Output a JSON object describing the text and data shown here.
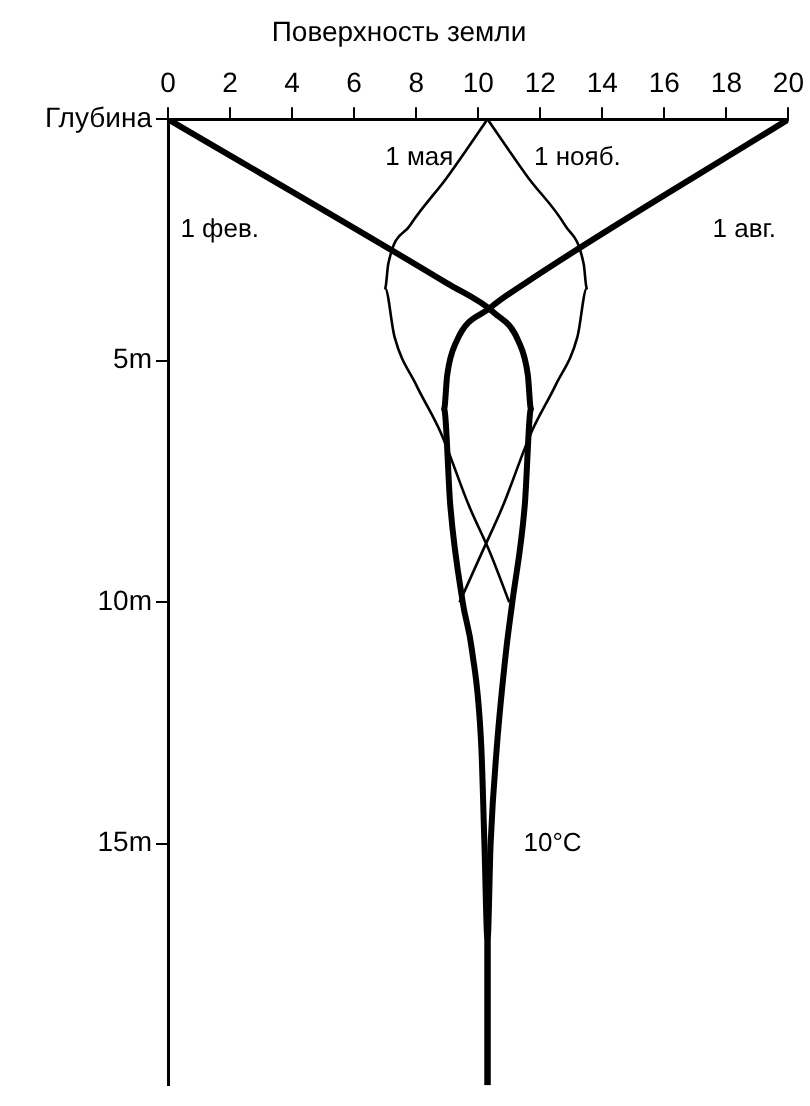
{
  "chart_data": {
    "type": "line",
    "title": "Поверхность земли",
    "xlim": [
      0,
      20
    ],
    "xticks": [
      0,
      2,
      4,
      6,
      8,
      10,
      12,
      14,
      16,
      18,
      20
    ],
    "ylim": [
      20,
      0
    ],
    "yticks": [
      {
        "value": 0,
        "label": "Глубина"
      },
      {
        "value": 5,
        "label": "5m"
      },
      {
        "value": 10,
        "label": "10m"
      },
      {
        "value": 15,
        "label": "15m"
      }
    ],
    "grid": false,
    "legend": false,
    "marker": "none",
    "line_style": "solid",
    "series": [
      {
        "name": "1 фев.",
        "color": "#000000",
        "x": [
          0,
          9,
          10.5,
          11.3,
          11.6,
          11.7,
          11.5,
          11.1,
          10.9,
          10.6,
          10.4,
          10.3,
          10.3
        ],
        "values": [
          0,
          3.4,
          4.0,
          4.6,
          5.3,
          6,
          8,
          10,
          11,
          13,
          15,
          17,
          20
        ]
      },
      {
        "name": "1 мая",
        "color": "#000000",
        "x": [
          10.3,
          9.0,
          7.8,
          7.1,
          7.0,
          7.3,
          8.0,
          8.8,
          9.7,
          10.4,
          11.0
        ],
        "values": [
          0,
          1.2,
          2.2,
          3.0,
          3.5,
          4.5,
          5.5,
          6.5,
          8,
          9,
          10
        ]
      },
      {
        "name": "1 нояб.",
        "color": "#000000",
        "x": [
          10.3,
          11.6,
          12.8,
          13.4,
          13.5,
          13.2,
          12.5,
          11.7,
          10.8,
          10.1,
          9.4
        ],
        "values": [
          0,
          1.2,
          2.2,
          3.0,
          3.5,
          4.5,
          5.5,
          6.5,
          8,
          9,
          10
        ]
      },
      {
        "name": "1 авг.",
        "color": "#000000",
        "x": [
          20,
          11.5,
          10.4,
          9.3,
          9.0,
          8.9,
          9.1,
          9.5,
          9.8,
          10.1,
          10.2,
          10.3,
          10.3
        ],
        "values": [
          0,
          3.4,
          3.9,
          4.6,
          5.3,
          6,
          8,
          10,
          11,
          13,
          15,
          17,
          20
        ]
      }
    ],
    "annotations": [
      {
        "text": "10°C",
        "x": 10.3,
        "y": 15
      }
    ]
  }
}
